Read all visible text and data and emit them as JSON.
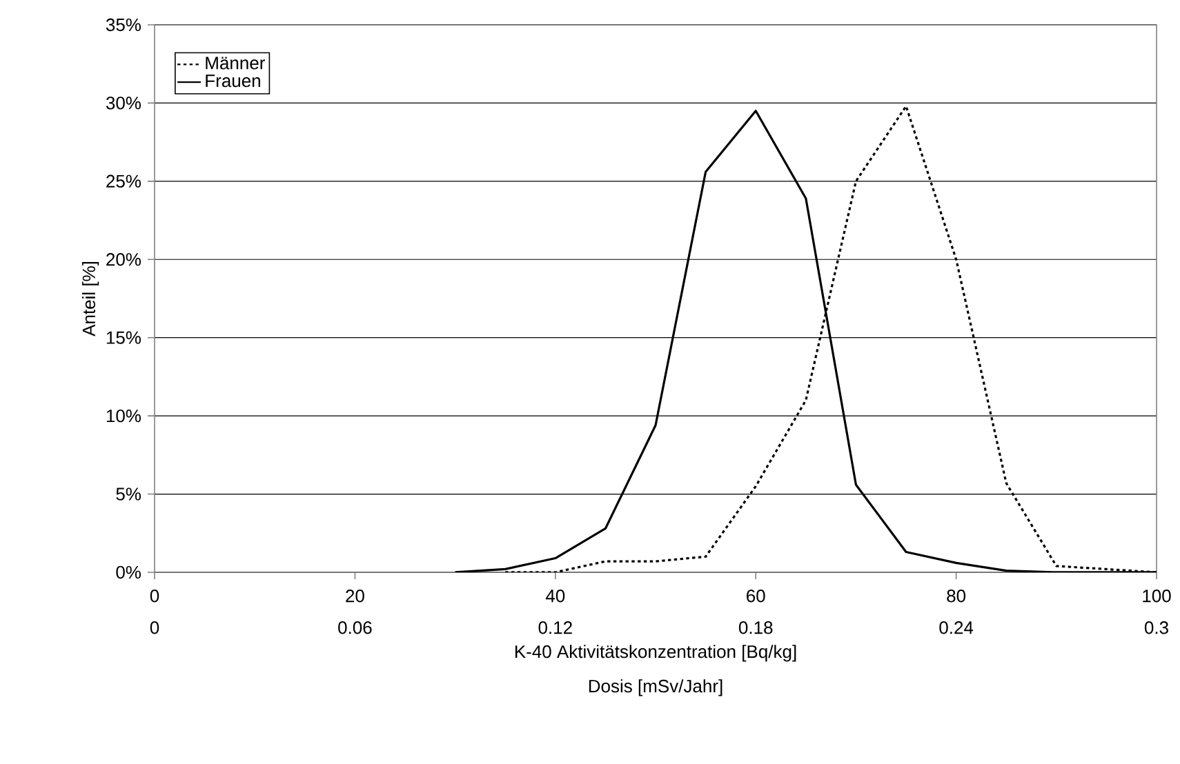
{
  "chart_data": {
    "type": "line",
    "xlabel": "K-40 Aktivitätskonzentration [Bq/kg]",
    "x2label": "Dosis [mSv/Jahr]",
    "ylabel": "Anteil [%]",
    "xlim": [
      0,
      100
    ],
    "xticks": [
      0,
      20,
      40,
      60,
      80,
      100
    ],
    "x2lim": [
      0,
      0.3
    ],
    "x2ticks": [
      0,
      0.06,
      0.12,
      0.18,
      0.24,
      0.3
    ],
    "ylim": [
      0,
      35
    ],
    "yticks": [
      {
        "value": 0,
        "label": "0%"
      },
      {
        "value": 5,
        "label": "5%"
      },
      {
        "value": 10,
        "label": "10%"
      },
      {
        "value": 15,
        "label": "15%"
      },
      {
        "value": 20,
        "label": "20%"
      },
      {
        "value": 25,
        "label": "25%"
      },
      {
        "value": 30,
        "label": "30%"
      },
      {
        "value": 35,
        "label": "35%"
      }
    ],
    "grid": "y",
    "legend": "top left",
    "marker": "none",
    "series": [
      {
        "name": "Männer",
        "color": "#000000",
        "line_style": "dotted",
        "x": [
          35,
          40,
          45,
          50,
          55,
          60,
          65,
          70,
          75,
          80,
          85,
          90,
          95,
          100
        ],
        "values": [
          0,
          0,
          0.7,
          0.7,
          1.0,
          5.5,
          11,
          25,
          29.8,
          20,
          5.7,
          0.4,
          0.2,
          0
        ]
      },
      {
        "name": "Frauen",
        "color": "#000000",
        "line_style": "solid",
        "x": [
          30,
          35,
          40,
          45,
          50,
          55,
          60,
          65,
          70,
          75,
          80,
          85,
          90,
          95,
          100
        ],
        "values": [
          0,
          0.2,
          0.9,
          2.8,
          9.4,
          25.6,
          29.5,
          23.9,
          5.6,
          1.3,
          0.6,
          0.1,
          0,
          0,
          0
        ]
      }
    ]
  }
}
